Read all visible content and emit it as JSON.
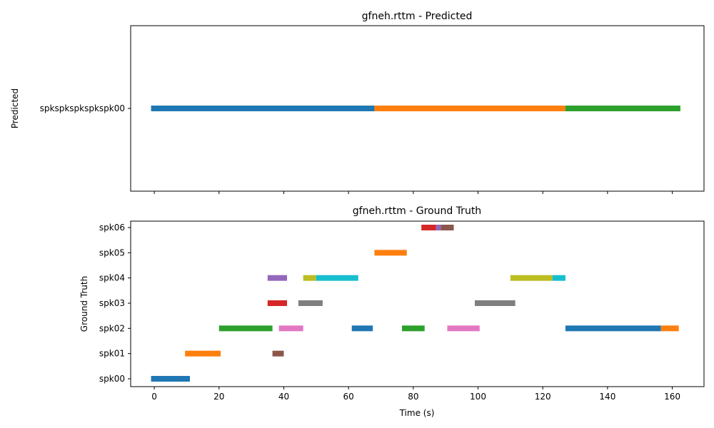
{
  "chart_data": [
    {
      "type": "timeline",
      "title": "gfneh.rttm - Predicted",
      "xlabel": "",
      "ylabel": "Predicted",
      "xlim": [
        -7.3,
        169.8
      ],
      "xticks": [
        0,
        20,
        40,
        60,
        80,
        100,
        120,
        140,
        160
      ],
      "show_xtick_labels": false,
      "speakers": [
        "spkspkspkspkspk00"
      ],
      "segments": [
        {
          "speaker": "spkspkspkspkspk00",
          "start": -1.0,
          "end": 68.0,
          "color": "#1f77b4"
        },
        {
          "speaker": "spkspkspkspkspk00",
          "start": 68.0,
          "end": 127.0,
          "color": "#ff7f0e"
        },
        {
          "speaker": "spkspkspkspkspk00",
          "start": 127.0,
          "end": 162.5,
          "color": "#2ca02c"
        }
      ]
    },
    {
      "type": "timeline",
      "title": "gfneh.rttm - Ground Truth",
      "xlabel": "Time (s)",
      "ylabel": "Ground Truth",
      "xlim": [
        -7.3,
        169.8
      ],
      "xticks": [
        0,
        20,
        40,
        60,
        80,
        100,
        120,
        140,
        160
      ],
      "show_xtick_labels": true,
      "speakers": [
        "spk00",
        "spk01",
        "spk02",
        "spk03",
        "spk04",
        "spk05",
        "spk06"
      ],
      "segments": [
        {
          "speaker": "spk00",
          "start": -1.0,
          "end": 11.0,
          "color": "#1f77b4"
        },
        {
          "speaker": "spk01",
          "start": 9.5,
          "end": 20.5,
          "color": "#ff7f0e"
        },
        {
          "speaker": "spk01",
          "start": 36.5,
          "end": 40.0,
          "color": "#8c564b"
        },
        {
          "speaker": "spk02",
          "start": 20.0,
          "end": 36.5,
          "color": "#2ca02c"
        },
        {
          "speaker": "spk02",
          "start": 38.5,
          "end": 46.0,
          "color": "#e377c2"
        },
        {
          "speaker": "spk02",
          "start": 61.0,
          "end": 67.5,
          "color": "#1f77b4"
        },
        {
          "speaker": "spk02",
          "start": 76.5,
          "end": 83.5,
          "color": "#2ca02c"
        },
        {
          "speaker": "spk02",
          "start": 90.5,
          "end": 100.5,
          "color": "#e377c2"
        },
        {
          "speaker": "spk02",
          "start": 127.0,
          "end": 156.5,
          "color": "#1f77b4"
        },
        {
          "speaker": "spk02",
          "start": 156.5,
          "end": 162.0,
          "color": "#ff7f0e"
        },
        {
          "speaker": "spk03",
          "start": 35.0,
          "end": 41.0,
          "color": "#d62728"
        },
        {
          "speaker": "spk03",
          "start": 44.5,
          "end": 52.0,
          "color": "#7f7f7f"
        },
        {
          "speaker": "spk03",
          "start": 99.0,
          "end": 111.5,
          "color": "#7f7f7f"
        },
        {
          "speaker": "spk04",
          "start": 35.0,
          "end": 41.0,
          "color": "#9467bd"
        },
        {
          "speaker": "spk04",
          "start": 46.0,
          "end": 50.0,
          "color": "#bcbd22"
        },
        {
          "speaker": "spk04",
          "start": 50.0,
          "end": 63.0,
          "color": "#17becf"
        },
        {
          "speaker": "spk04",
          "start": 110.0,
          "end": 123.0,
          "color": "#bcbd22"
        },
        {
          "speaker": "spk04",
          "start": 123.0,
          "end": 127.0,
          "color": "#17becf"
        },
        {
          "speaker": "spk05",
          "start": 68.0,
          "end": 78.0,
          "color": "#ff7f0e"
        },
        {
          "speaker": "spk06",
          "start": 82.5,
          "end": 87.0,
          "color": "#d62728"
        },
        {
          "speaker": "spk06",
          "start": 87.0,
          "end": 88.5,
          "color": "#9467bd"
        },
        {
          "speaker": "spk06",
          "start": 88.5,
          "end": 92.5,
          "color": "#8c564b"
        }
      ]
    }
  ]
}
